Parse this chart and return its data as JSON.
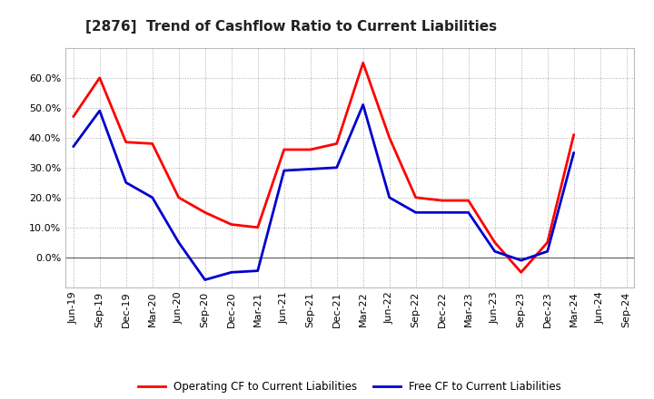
{
  "title": "[2876]  Trend of Cashflow Ratio to Current Liabilities",
  "x_labels": [
    "Jun-19",
    "Sep-19",
    "Dec-19",
    "Mar-20",
    "Jun-20",
    "Sep-20",
    "Dec-20",
    "Mar-21",
    "Jun-21",
    "Sep-21",
    "Dec-21",
    "Mar-22",
    "Jun-22",
    "Sep-22",
    "Dec-22",
    "Mar-23",
    "Jun-23",
    "Sep-23",
    "Dec-23",
    "Mar-24",
    "Jun-24",
    "Sep-24"
  ],
  "operating_cf": [
    47,
    60,
    38.5,
    38,
    20,
    15,
    11,
    10,
    36,
    36,
    38,
    65,
    40,
    20,
    19,
    19,
    5,
    -5,
    5,
    41,
    null,
    null
  ],
  "free_cf": [
    37,
    49,
    25,
    20,
    5,
    -7.5,
    -5,
    -4.5,
    29,
    29.5,
    30,
    51,
    20,
    15,
    15,
    15,
    2,
    -1,
    2,
    35,
    null,
    null
  ],
  "ylim": [
    -10,
    70
  ],
  "yticks": [
    0,
    10,
    20,
    30,
    40,
    50,
    60
  ],
  "operating_color": "#FF0000",
  "free_color": "#0000CC",
  "legend_op": "Operating CF to Current Liabilities",
  "legend_free": "Free CF to Current Liabilities"
}
